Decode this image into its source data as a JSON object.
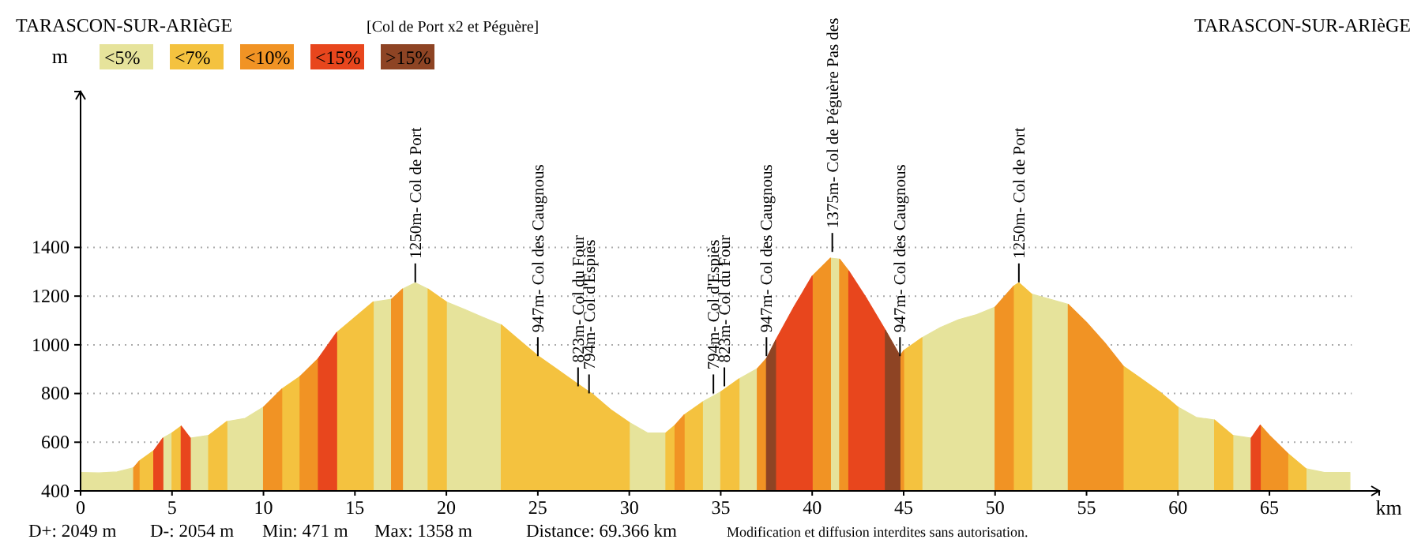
{
  "chart_data": {
    "type": "area",
    "title": "[Col de Port x2 et Péguère]",
    "xlabel": "km",
    "ylabel": "m",
    "xlim": [
      0,
      71
    ],
    "xticks": [
      0,
      5,
      10,
      15,
      20,
      25,
      30,
      35,
      40,
      45,
      50,
      55,
      60,
      65
    ],
    "ylim": [
      400,
      2040
    ],
    "yticks": [
      400,
      600,
      800,
      1000,
      1200,
      1400
    ],
    "grid": "y",
    "legend": "top left",
    "series": [
      {
        "name": "<5%",
        "color": "#e6e39b",
        "x": [
          0,
          1,
          2,
          2.9,
          null,
          4.5,
          5,
          null,
          6,
          7,
          null,
          8,
          9,
          10,
          null,
          16,
          17,
          null,
          17.6,
          18.3,
          19,
          null,
          20,
          21,
          22,
          23,
          null,
          30,
          31,
          32,
          null,
          34,
          35,
          null,
          36,
          37,
          null,
          41,
          41.5,
          null,
          46,
          47,
          48,
          49,
          50,
          null,
          52,
          53,
          54,
          null,
          60,
          61,
          62,
          null,
          63,
          64,
          null,
          67,
          68,
          69,
          69.4
        ],
        "values": [
          476,
          474,
          478,
          495,
          null,
          617,
          638,
          null,
          617,
          628,
          null,
          685,
          698,
          744,
          null,
          1176,
          1187,
          null,
          1229,
          1255,
          1229,
          null,
          1176,
          1145,
          1113,
          1082,
          null,
          681,
          638,
          638,
          null,
          765,
          807,
          null,
          860,
          902,
          null,
          1356,
          1352,
          null,
          1029,
          1071,
          1103,
          1124,
          1155,
          null,
          1208,
          1187,
          1166,
          null,
          744,
          702,
          691,
          null,
          628,
          617,
          null,
          491,
          476,
          476,
          476
        ]
      },
      {
        "name": "<7%",
        "color": "#f4c23f",
        "x": [
          3.2,
          4,
          null,
          5,
          5.5,
          null,
          7,
          8,
          null,
          11,
          12,
          null,
          14,
          15,
          16,
          null,
          19,
          20,
          null,
          23,
          24,
          25,
          26,
          27,
          28,
          29,
          30,
          null,
          32,
          32.5,
          null,
          33,
          34,
          null,
          35,
          36,
          null,
          45,
          46,
          null,
          51,
          51.3,
          52,
          null,
          57,
          58,
          59,
          60,
          null,
          62,
          63,
          null,
          66,
          67
        ],
        "values": [
          522,
          565,
          null,
          638,
          666,
          null,
          628,
          685,
          null,
          818,
          870,
          null,
          1050,
          1113,
          1176,
          null,
          1229,
          1176,
          null,
          1082,
          1018,
          955,
          902,
          849,
          797,
          733,
          681,
          null,
          638,
          670,
          null,
          712,
          765,
          null,
          807,
          860,
          null,
          976,
          1029,
          null,
          1240,
          1255,
          1208,
          null,
          913,
          860,
          807,
          744,
          null,
          691,
          628,
          null,
          554,
          491
        ]
      },
      {
        "name": "<10%",
        "color": "#f19324",
        "x": [
          2.9,
          3.2,
          null,
          10,
          11,
          null,
          12,
          13,
          null,
          17,
          17.6,
          null,
          32.5,
          33,
          null,
          37,
          37.5,
          null,
          40,
          41,
          null,
          41.5,
          42,
          null,
          44.8,
          45,
          null,
          50,
          51,
          null,
          54,
          55,
          56,
          57,
          null,
          64.5,
          65,
          66
        ],
        "values": [
          495,
          522,
          null,
          744,
          818,
          null,
          870,
          944,
          null,
          1187,
          1229,
          null,
          670,
          712,
          null,
          902,
          944,
          null,
          1282,
          1356,
          null,
          1352,
          1303,
          null,
          955,
          976,
          null,
          1155,
          1240,
          null,
          1166,
          1092,
          1008,
          913,
          null,
          670,
          628,
          554
        ]
      },
      {
        "name": "<15%",
        "color": "#e8461d",
        "x": [
          4,
          4.5,
          null,
          5.5,
          6,
          null,
          13,
          14,
          null,
          38,
          39,
          40,
          null,
          42,
          43,
          44,
          null,
          64,
          64.5
        ],
        "values": [
          565,
          617,
          null,
          666,
          617,
          null,
          944,
          1050,
          null,
          1018,
          1155,
          1282,
          null,
          1303,
          1187,
          1060,
          null,
          617,
          670
        ]
      },
      {
        "name": ">15%",
        "color": "#8e4424",
        "x": [
          37.5,
          38,
          null,
          44,
          44.8
        ],
        "values": [
          944,
          1018,
          null,
          1060,
          955
        ]
      }
    ],
    "annotations": [
      "TARASCON-SUR-ARIèGE",
      "TARASCON-SUR-ARIèGE",
      "D+: 2049 m",
      "D-: 2054 m",
      "Min: 471 m",
      "Max: 1358 m",
      "Distance: 69.366 km",
      "Modification et diffusion interdites sans autorisation.",
      {
        "text": "1250m- Col de Port",
        "x": 18.3,
        "y": 1250
      },
      {
        "text": "947m- Col des Caugnous",
        "x": 25,
        "y": 947
      },
      {
        "text": "823m- Col du Four",
        "x": 27.2,
        "y": 823
      },
      {
        "text": "794m- Col d'Espiès",
        "x": 27.8,
        "y": 794
      },
      {
        "text": "794m- Col d'Espiès",
        "x": 34.6,
        "y": 794
      },
      {
        "text": "823m- Col du Four",
        "x": 35.2,
        "y": 823
      },
      {
        "text": "947m- Col des Caugnous",
        "x": 37.5,
        "y": 947
      },
      {
        "text": "1375m- Col de Péguère Pas des",
        "x": 41.1,
        "y": 1375
      },
      {
        "text": "947m- Col des Caugnous",
        "x": 44.8,
        "y": 947
      },
      {
        "text": "1250m- Col de Port",
        "x": 51.3,
        "y": 1250
      }
    ]
  }
}
